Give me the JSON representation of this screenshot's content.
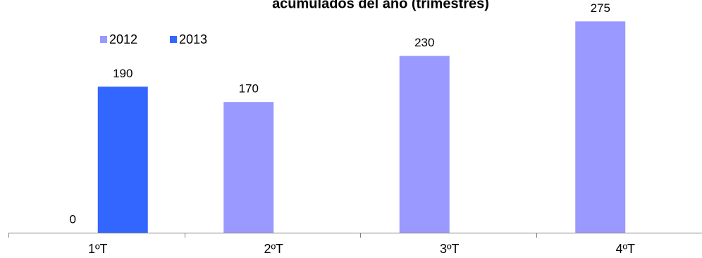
{
  "chart_data": {
    "type": "bar",
    "title": "acumulados del año (trimestres)",
    "categories": [
      "1ºT",
      "2ºT",
      "3ºT",
      "4ºT"
    ],
    "series": [
      {
        "name": "2012",
        "color": "#9999ff",
        "values": [
          0,
          170,
          230,
          275
        ]
      },
      {
        "name": "2013",
        "color": "#3366ff",
        "values": [
          190,
          null,
          null,
          null
        ]
      }
    ],
    "data_labels": [
      {
        "value": "0"
      },
      {
        "value": "190"
      },
      {
        "value": "170"
      },
      {
        "value": "230"
      },
      {
        "value": "275"
      }
    ],
    "ylim": [
      0,
      290
    ],
    "grid": false,
    "legend_position": "top-left"
  }
}
